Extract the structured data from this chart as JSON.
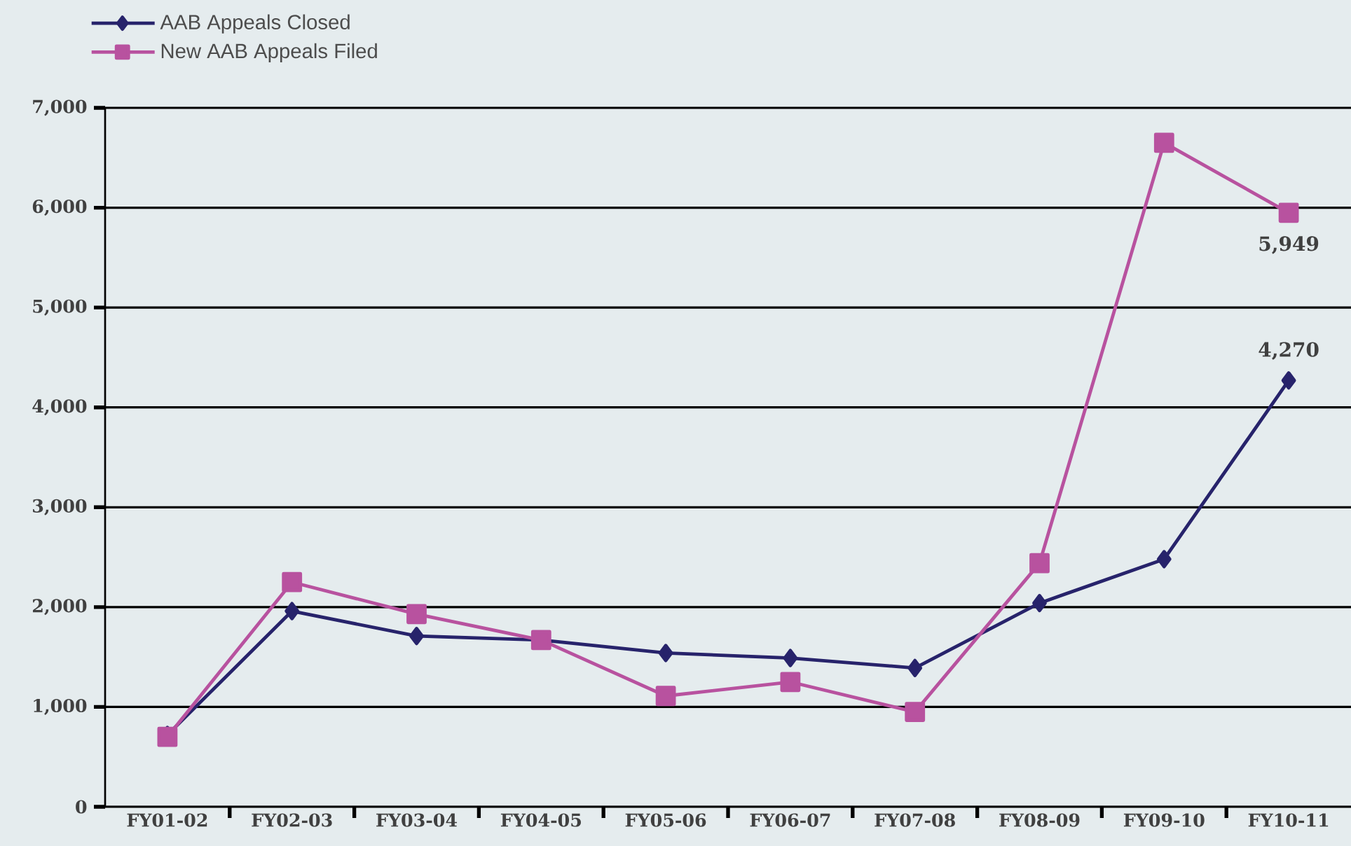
{
  "chart_data": {
    "type": "line",
    "categories": [
      "FY01-02",
      "FY02-03",
      "FY03-04",
      "FY04-05",
      "FY05-06",
      "FY06-07",
      "FY07-08",
      "FY08-09",
      "FY09-10",
      "FY10-11"
    ],
    "series": [
      {
        "name": "AAB Appeals Closed",
        "color": "#27236b",
        "marker": "diamond",
        "values": [
          720,
          1960,
          1710,
          1670,
          1540,
          1490,
          1390,
          2040,
          2480,
          4270
        ],
        "value_labels": [
          null,
          null,
          null,
          null,
          null,
          null,
          null,
          null,
          null,
          "4,270"
        ]
      },
      {
        "name": "New AAB Appeals Filed",
        "color": "#b8529f",
        "marker": "square",
        "values": [
          700,
          2250,
          1930,
          1670,
          1110,
          1250,
          950,
          2440,
          6650,
          5949
        ],
        "value_labels": [
          null,
          null,
          null,
          null,
          null,
          null,
          null,
          null,
          null,
          "5,949"
        ]
      }
    ],
    "ylim": [
      0,
      7000
    ],
    "yticks": [
      {
        "value": 0,
        "label": "0"
      },
      {
        "value": 1000,
        "label": "1,000"
      },
      {
        "value": 2000,
        "label": "2,000"
      },
      {
        "value": 3000,
        "label": "3,000"
      },
      {
        "value": 4000,
        "label": "4,000"
      },
      {
        "value": 5000,
        "label": "5,000"
      },
      {
        "value": 6000,
        "label": "6,000"
      },
      {
        "value": 7000,
        "label": "7,000"
      }
    ],
    "grid": "y",
    "legend": "top left",
    "line_style": "solid"
  }
}
